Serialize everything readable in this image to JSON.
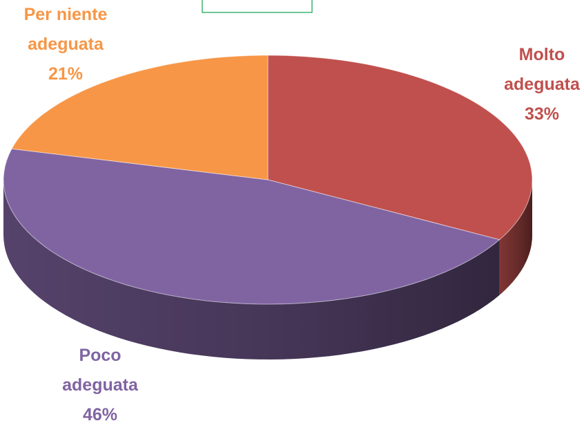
{
  "chart_data": {
    "type": "pie",
    "categories": [
      "Molto adeguata",
      "Poco adeguata",
      "Per niente adeguata"
    ],
    "values": [
      33,
      46,
      21
    ],
    "value_labels": [
      "33%",
      "46%",
      "21%"
    ],
    "colors": [
      "#c0504d",
      "#8064a2",
      "#f79646"
    ]
  }
}
